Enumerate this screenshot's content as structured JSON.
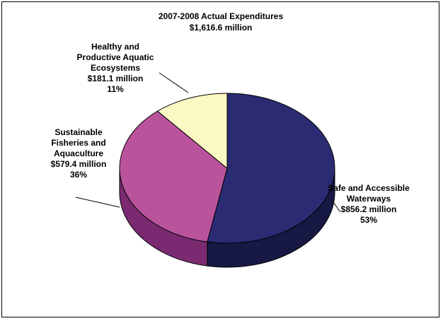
{
  "chart_data": {
    "type": "pie",
    "title": "2007-2008 Actual Expenditures",
    "subtitle": "$1,616.6 million",
    "slices": [
      {
        "label_lines": [
          "Safe and Accessible",
          "Waterways"
        ],
        "value_text": "$856.2 million",
        "value": 856.2,
        "percent": 53,
        "percent_text": "53%",
        "color": "#2a2b72",
        "side_color": "#171844"
      },
      {
        "label_lines": [
          "Sustainable",
          "Fisheries and",
          "Aquaculture"
        ],
        "value_text": "$579.4 million",
        "value": 579.4,
        "percent": 36,
        "percent_text": "36%",
        "color": "#b9539c",
        "side_color": "#7b2a72"
      },
      {
        "label_lines": [
          "Healthy and",
          "Productive Aquatic",
          "Ecosystems"
        ],
        "value_text": "$181.1 million",
        "value": 181.1,
        "percent": 11,
        "percent_text": "11%",
        "color": "#fbf8c4",
        "side_color": "#c9c591"
      }
    ]
  }
}
